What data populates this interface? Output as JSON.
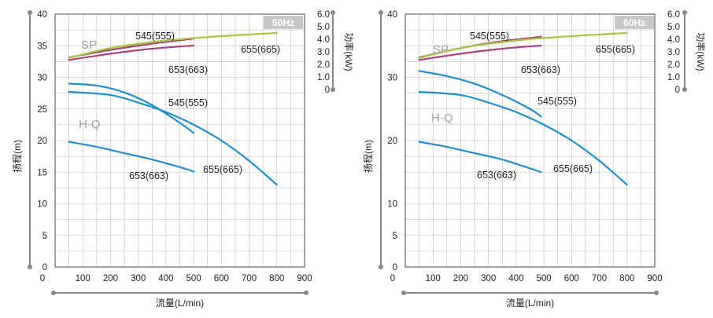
{
  "colors": {
    "hq": "#1f8fd1",
    "sp_purple": "#b0407e",
    "sp_green": "#a6c83a",
    "badge_bg": "#c8c8c8",
    "badge_text": "#ffffff",
    "grid": "#bbbbbb",
    "frame": "#444444",
    "axis_rail": "#888888",
    "label_gray": "#a0a0a0"
  },
  "chart_data": [
    {
      "type": "line",
      "badge": "50Hz",
      "xlabel": "流量(L/min)",
      "ylabel": "扬程(m)",
      "y2label": "功率(kW)",
      "xlim": [
        0,
        900
      ],
      "ylim": [
        0,
        40
      ],
      "y2lim": [
        0,
        6
      ],
      "x_ticks": [
        "0",
        "100",
        "200",
        "300",
        "400",
        "500",
        "600",
        "700",
        "800",
        "900"
      ],
      "y_ticks": [
        "0",
        "5",
        "10",
        "15",
        "20",
        "25",
        "30",
        "35",
        "40"
      ],
      "y2_ticks": [
        "0",
        "1.0",
        "2.0",
        "3.0",
        "4.0",
        "5.0",
        "6.0"
      ],
      "grid": true,
      "group_labels": {
        "sp": "SP",
        "hq": "H-Q"
      },
      "series": [
        {
          "name": "545(555)",
          "kind": "hq",
          "color": "hq",
          "x": [
            50,
            150,
            250,
            350,
            450,
            500
          ],
          "y": [
            29.0,
            28.7,
            27.6,
            25.6,
            22.8,
            21.2
          ]
        },
        {
          "name": "655(665)",
          "kind": "hq",
          "color": "hq",
          "x": [
            50,
            200,
            300,
            400,
            500,
            600,
            700,
            800
          ],
          "y": [
            27.7,
            27.2,
            26.0,
            24.5,
            22.5,
            20.0,
            16.8,
            13.0
          ]
        },
        {
          "name": "653(663)",
          "kind": "hq",
          "color": "hq",
          "x": [
            50,
            150,
            250,
            350,
            450,
            500
          ],
          "y": [
            19.8,
            19.0,
            18.0,
            17.0,
            15.8,
            15.1
          ]
        },
        {
          "name": "545(555)",
          "kind": "sp",
          "color": "sp_purple",
          "x": [
            50,
            200,
            350,
            500
          ],
          "y": [
            2.55,
            3.15,
            3.65,
            4.05
          ]
        },
        {
          "name": "653(663)",
          "kind": "sp",
          "color": "sp_purple",
          "x": [
            50,
            200,
            350,
            500
          ],
          "y": [
            2.35,
            2.85,
            3.25,
            3.5
          ]
        },
        {
          "name": "655(665)",
          "kind": "sp",
          "color": "sp_green",
          "x": [
            50,
            200,
            400,
            600,
            800
          ],
          "y": [
            2.5,
            3.3,
            3.9,
            4.25,
            4.5
          ]
        }
      ],
      "annotations": [
        {
          "text": "545(555)",
          "target": "sp"
        },
        {
          "text": "655(665)",
          "target": "sp"
        },
        {
          "text": "653(663)",
          "target": "sp"
        },
        {
          "text": "545(555)",
          "target": "hq"
        },
        {
          "text": "655(665)",
          "target": "hq"
        },
        {
          "text": "653(663)",
          "target": "hq"
        }
      ]
    },
    {
      "type": "line",
      "badge": "60Hz",
      "xlabel": "流量(L/min)",
      "ylabel": "扬程(m)",
      "y2label": "功率(kW)",
      "xlim": [
        0,
        900
      ],
      "ylim": [
        0,
        40
      ],
      "y2lim": [
        0,
        6
      ],
      "x_ticks": [
        "0",
        "100",
        "200",
        "300",
        "400",
        "500",
        "600",
        "700",
        "800",
        "900"
      ],
      "y_ticks": [
        "0",
        "5",
        "10",
        "20",
        "30",
        "40"
      ],
      "y2_ticks": [
        "0",
        "1.0",
        "2.0",
        "3.0",
        "4.0",
        "5.0",
        "6.0"
      ],
      "grid": true,
      "group_labels": {
        "sp": "SP",
        "hq": "H-Q"
      },
      "series": [
        {
          "name": "545(555)",
          "kind": "hq",
          "color": "hq",
          "x": [
            50,
            150,
            250,
            350,
            450,
            490
          ],
          "y": [
            31.0,
            30.2,
            29.0,
            27.2,
            25.0,
            23.8
          ]
        },
        {
          "name": "655(665)",
          "kind": "hq",
          "color": "hq",
          "x": [
            50,
            200,
            300,
            400,
            500,
            600,
            700,
            800
          ],
          "y": [
            27.7,
            27.2,
            26.0,
            24.5,
            22.5,
            20.0,
            16.8,
            13.0
          ]
        },
        {
          "name": "653(663)",
          "kind": "hq",
          "color": "hq",
          "x": [
            50,
            150,
            250,
            350,
            450,
            490
          ],
          "y": [
            19.8,
            19.0,
            18.0,
            17.0,
            15.6,
            15.0
          ]
        },
        {
          "name": "545(555)",
          "kind": "sp",
          "color": "sp_purple",
          "x": [
            50,
            200,
            350,
            490
          ],
          "y": [
            2.55,
            3.3,
            3.85,
            4.2
          ]
        },
        {
          "name": "653(663)",
          "kind": "sp",
          "color": "sp_purple",
          "x": [
            50,
            200,
            350,
            490
          ],
          "y": [
            2.35,
            2.85,
            3.25,
            3.5
          ]
        },
        {
          "name": "655(665)",
          "kind": "sp",
          "color": "sp_green",
          "x": [
            50,
            200,
            400,
            600,
            800
          ],
          "y": [
            2.5,
            3.3,
            3.9,
            4.25,
            4.5
          ]
        }
      ],
      "annotations": [
        {
          "text": "545(555)",
          "target": "sp"
        },
        {
          "text": "655(665)",
          "target": "sp"
        },
        {
          "text": "653(663)",
          "target": "sp"
        },
        {
          "text": "545(555)",
          "target": "hq"
        },
        {
          "text": "655(665)",
          "target": "hq"
        },
        {
          "text": "653(663)",
          "target": "hq"
        }
      ]
    }
  ]
}
